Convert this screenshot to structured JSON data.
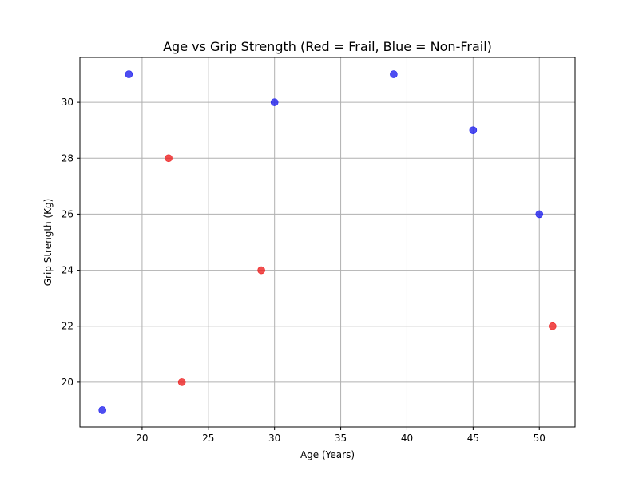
{
  "chart_data": {
    "type": "scatter",
    "title": "Age vs Grip Strength (Red = Frail, Blue = Non-Frail)",
    "xlabel": "Age (Years)",
    "ylabel": "Grip Strength (Kg)",
    "xlim": [
      15.3,
      52.7
    ],
    "ylim": [
      18.4,
      31.6
    ],
    "xticks": [
      20,
      25,
      30,
      35,
      40,
      45,
      50
    ],
    "yticks": [
      20,
      22,
      24,
      26,
      28,
      30
    ],
    "grid": true,
    "legend": "none",
    "series": [
      {
        "group": "frail",
        "color": "#ee2222",
        "points": [
          {
            "x": 22,
            "y": 28
          },
          {
            "x": 23,
            "y": 20
          },
          {
            "x": 29,
            "y": 24
          },
          {
            "x": 51,
            "y": 22
          }
        ]
      },
      {
        "group": "non-frail",
        "color": "#2222ee",
        "points": [
          {
            "x": 17,
            "y": 19
          },
          {
            "x": 19,
            "y": 31
          },
          {
            "x": 30,
            "y": 30
          },
          {
            "x": 39,
            "y": 31
          },
          {
            "x": 45,
            "y": 29
          },
          {
            "x": 50,
            "y": 26
          }
        ]
      }
    ]
  }
}
